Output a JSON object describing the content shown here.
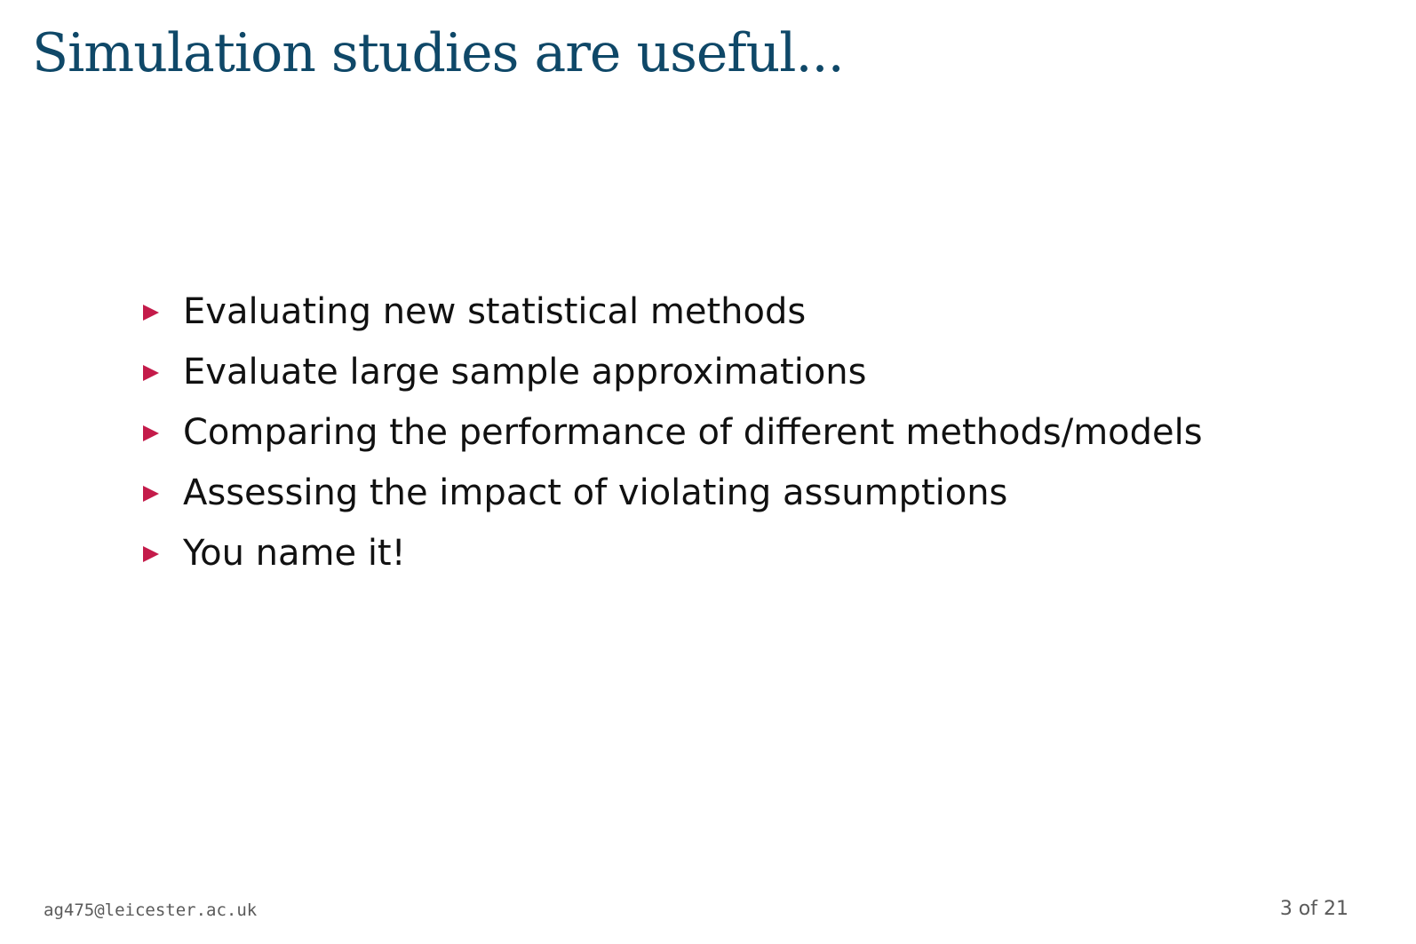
{
  "slide": {
    "title": "Simulation studies are useful...",
    "bullets": [
      "Evaluating new statistical methods",
      "Evaluate large sample approximations",
      "Comparing the performance of different methods/models",
      "Assessing the impact of violating assumptions",
      "You name it!"
    ],
    "bullet_icon": "triangle-right-icon",
    "bullet_color": "#c41b4a",
    "title_color": "#0f4868"
  },
  "footer": {
    "email": "ag475@leicester.ac.uk",
    "page_indicator": "3 of 21"
  }
}
